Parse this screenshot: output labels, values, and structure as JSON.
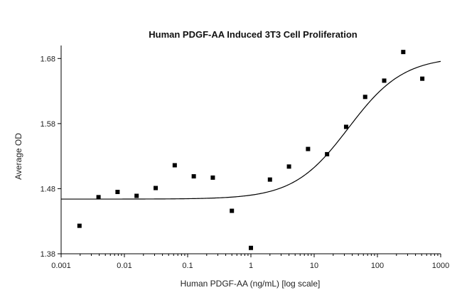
{
  "chart_data": {
    "type": "scatter",
    "title": "Human PDGF-AA Induced 3T3 Cell Proliferation",
    "xlabel": "Human PDGF-AA (ng/mL) [log scale]",
    "ylabel": "Average OD",
    "x_scale": "log",
    "xlim": [
      0.001,
      1000
    ],
    "ylim": [
      1.38,
      1.7
    ],
    "x_ticks": [
      0.001,
      0.01,
      0.1,
      1,
      10,
      100,
      1000
    ],
    "x_tick_labels": [
      "0.001",
      "0.01",
      "0.1",
      "1",
      "10",
      "100",
      "1000"
    ],
    "y_ticks": [
      1.38,
      1.48,
      1.58,
      1.68
    ],
    "y_tick_labels": [
      "1.38",
      "1.48",
      "1.58",
      "1.68"
    ],
    "grid": false,
    "legend": "none",
    "series": [
      {
        "marker": "square",
        "color": "#000000",
        "points": [
          {
            "x": 0.00195,
            "y": 1.423
          },
          {
            "x": 0.0039,
            "y": 1.467
          },
          {
            "x": 0.0078,
            "y": 1.475
          },
          {
            "x": 0.0156,
            "y": 1.469
          },
          {
            "x": 0.03125,
            "y": 1.481
          },
          {
            "x": 0.0625,
            "y": 1.516
          },
          {
            "x": 0.125,
            "y": 1.499
          },
          {
            "x": 0.25,
            "y": 1.497
          },
          {
            "x": 0.5,
            "y": 1.446
          },
          {
            "x": 1.0,
            "y": 1.389
          },
          {
            "x": 2.0,
            "y": 1.494
          },
          {
            "x": 4.0,
            "y": 1.514
          },
          {
            "x": 8.0,
            "y": 1.541
          },
          {
            "x": 16.0,
            "y": 1.533
          },
          {
            "x": 32.0,
            "y": 1.575
          },
          {
            "x": 64.0,
            "y": 1.621
          },
          {
            "x": 128.0,
            "y": 1.646
          },
          {
            "x": 256.0,
            "y": 1.69
          },
          {
            "x": 512.0,
            "y": 1.649
          }
        ]
      }
    ],
    "fit_curve": {
      "model": "4PL",
      "bottom": 1.464,
      "top": 1.683,
      "ec50": 35,
      "hill": 1.0,
      "color": "#000000"
    }
  }
}
